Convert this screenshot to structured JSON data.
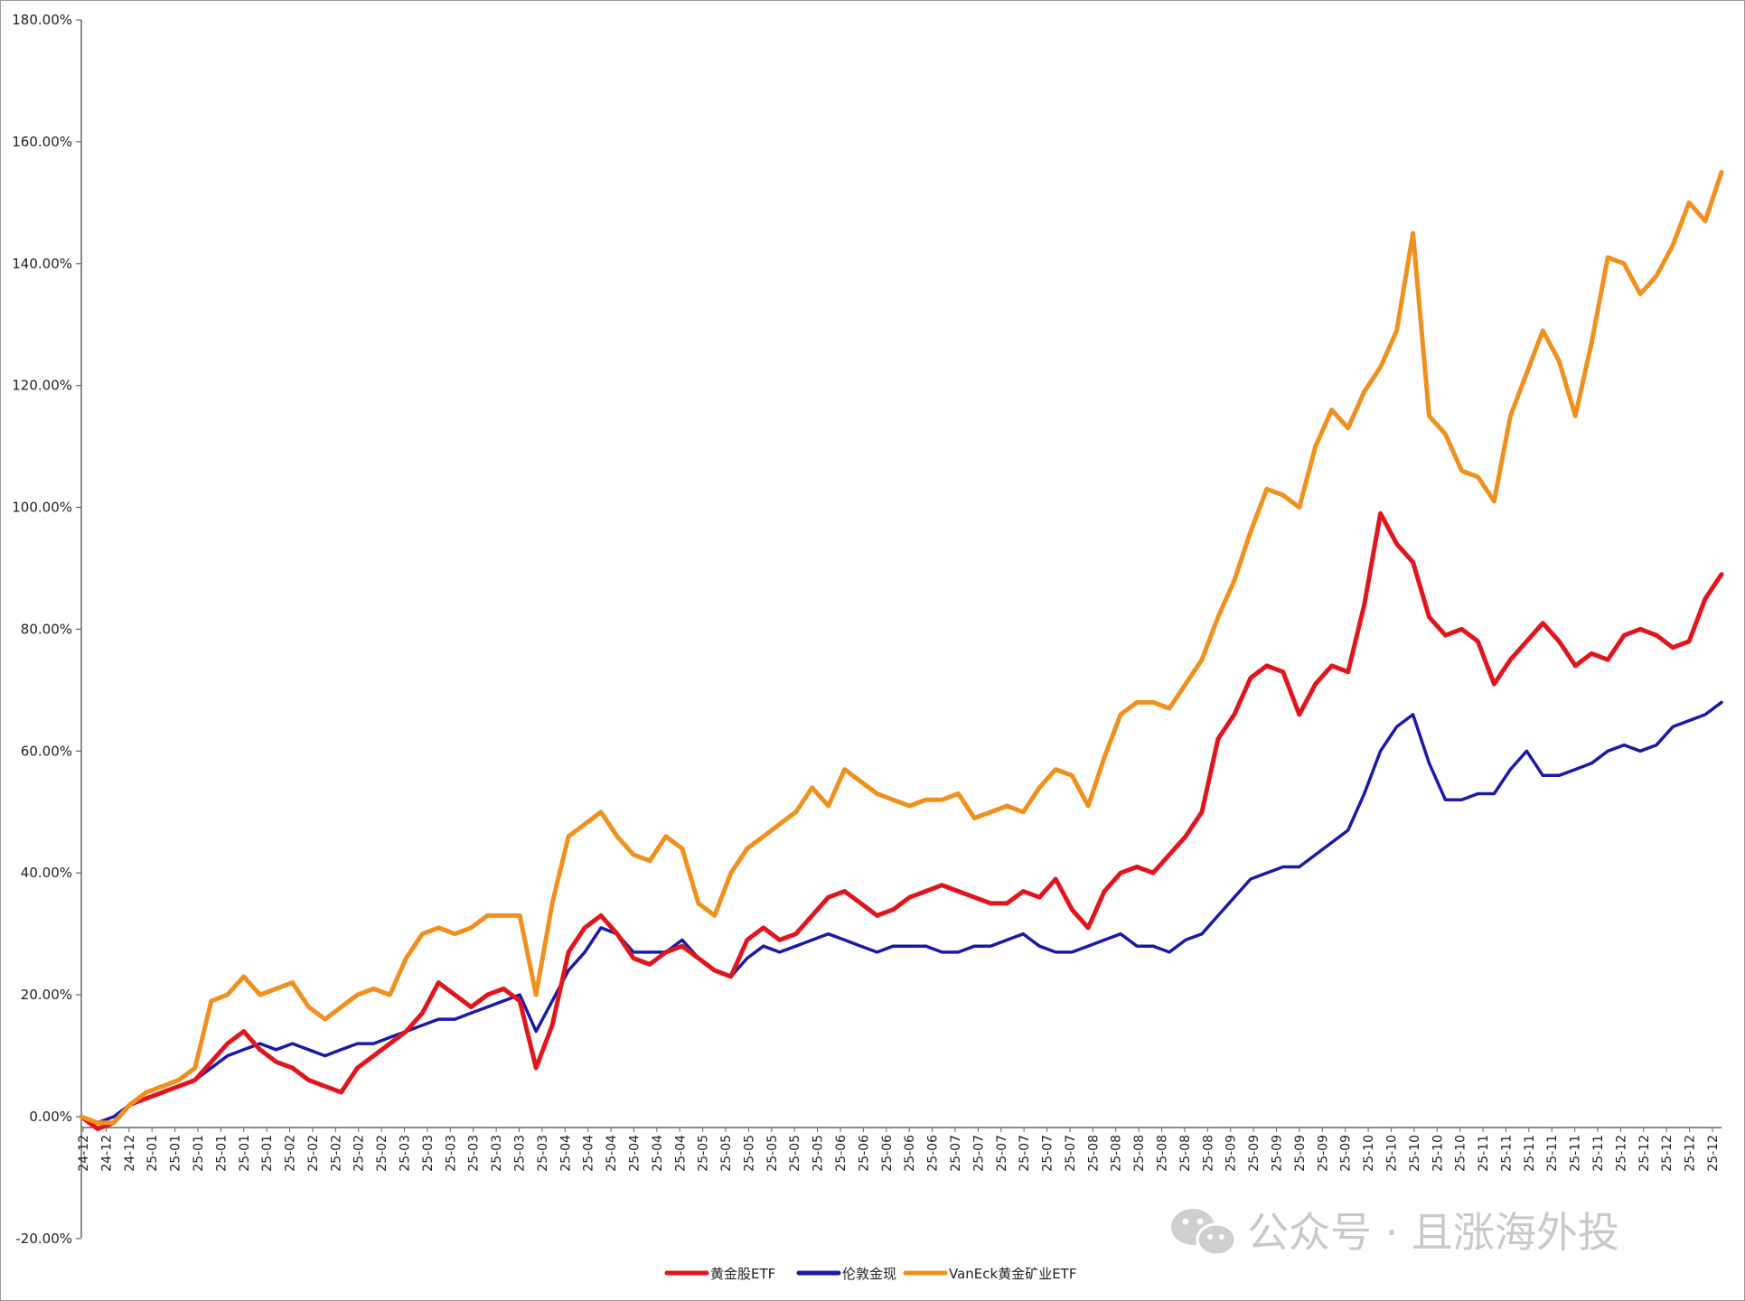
{
  "chart_data": {
    "type": "line",
    "title": "",
    "xlabel": "",
    "ylabel": "",
    "ylim": [
      -0.2,
      1.8
    ],
    "yticks": [
      "-20.00%",
      "0.00%",
      "20.00%",
      "40.00%",
      "60.00%",
      "80.00%",
      "100.00%",
      "120.00%",
      "140.00%",
      "160.00%",
      "180.00%"
    ],
    "xticks": [
      "24-12",
      "24-12",
      "24-12",
      "25-01",
      "25-01",
      "25-01",
      "25-01",
      "25-01",
      "25-01",
      "25-02",
      "25-02",
      "25-02",
      "25-02",
      "25-02",
      "25-03",
      "25-03",
      "25-03",
      "25-03",
      "25-03",
      "25-03",
      "25-03",
      "25-04",
      "25-04",
      "25-04",
      "25-04",
      "25-04",
      "25-04",
      "25-05",
      "25-05",
      "25-05",
      "25-05",
      "25-05",
      "25-05",
      "25-06",
      "25-06",
      "25-06",
      "25-06",
      "25-06",
      "25-07",
      "25-07",
      "25-07",
      "25-07",
      "25-07",
      "25-07",
      "25-08",
      "25-08",
      "25-08",
      "25-08",
      "25-08",
      "25-08",
      "25-09",
      "25-09",
      "25-09",
      "25-09",
      "25-09",
      "25-09",
      "25-10",
      "25-10",
      "25-10",
      "25-10",
      "25-10",
      "25-11",
      "25-11",
      "25-11",
      "25-11",
      "25-11",
      "25-11",
      "25-12",
      "25-12",
      "25-12",
      "25-12",
      "25-12"
    ],
    "legend_position": "bottom-center",
    "grid": false,
    "series": [
      {
        "name": "黄金股ETF",
        "color": "#e0161e",
        "points": [
          [
            0,
            0.0
          ],
          [
            1,
            -0.02
          ],
          [
            2,
            -0.01
          ],
          [
            3,
            0.02
          ],
          [
            4,
            0.03
          ],
          [
            5,
            0.04
          ],
          [
            6,
            0.05
          ],
          [
            7,
            0.06
          ],
          [
            8,
            0.09
          ],
          [
            9,
            0.12
          ],
          [
            10,
            0.14
          ],
          [
            11,
            0.11
          ],
          [
            12,
            0.09
          ],
          [
            13,
            0.08
          ],
          [
            14,
            0.06
          ],
          [
            15,
            0.05
          ],
          [
            16,
            0.04
          ],
          [
            17,
            0.08
          ],
          [
            18,
            0.1
          ],
          [
            19,
            0.12
          ],
          [
            20,
            0.14
          ],
          [
            21,
            0.17
          ],
          [
            22,
            0.22
          ],
          [
            23,
            0.2
          ],
          [
            24,
            0.18
          ],
          [
            25,
            0.2
          ],
          [
            26,
            0.21
          ],
          [
            27,
            0.19
          ],
          [
            28,
            0.08
          ],
          [
            29,
            0.15
          ],
          [
            30,
            0.27
          ],
          [
            31,
            0.31
          ],
          [
            32,
            0.33
          ],
          [
            33,
            0.3
          ],
          [
            34,
            0.26
          ],
          [
            35,
            0.25
          ],
          [
            36,
            0.27
          ],
          [
            37,
            0.28
          ],
          [
            38,
            0.26
          ],
          [
            39,
            0.24
          ],
          [
            40,
            0.23
          ],
          [
            41,
            0.29
          ],
          [
            42,
            0.31
          ],
          [
            43,
            0.29
          ],
          [
            44,
            0.3
          ],
          [
            45,
            0.33
          ],
          [
            46,
            0.36
          ],
          [
            47,
            0.37
          ],
          [
            48,
            0.35
          ],
          [
            49,
            0.33
          ],
          [
            50,
            0.34
          ],
          [
            51,
            0.36
          ],
          [
            52,
            0.37
          ],
          [
            53,
            0.38
          ],
          [
            54,
            0.37
          ],
          [
            55,
            0.36
          ],
          [
            56,
            0.35
          ],
          [
            57,
            0.35
          ],
          [
            58,
            0.37
          ],
          [
            59,
            0.36
          ],
          [
            60,
            0.39
          ],
          [
            61,
            0.34
          ],
          [
            62,
            0.31
          ],
          [
            63,
            0.37
          ],
          [
            64,
            0.4
          ],
          [
            65,
            0.41
          ],
          [
            66,
            0.4
          ],
          [
            67,
            0.43
          ],
          [
            68,
            0.46
          ],
          [
            69,
            0.5
          ],
          [
            70,
            0.62
          ],
          [
            71,
            0.66
          ],
          [
            72,
            0.72
          ],
          [
            73,
            0.74
          ],
          [
            74,
            0.73
          ],
          [
            75,
            0.66
          ],
          [
            76,
            0.71
          ],
          [
            77,
            0.74
          ],
          [
            78,
            0.73
          ],
          [
            79,
            0.84
          ],
          [
            80,
            0.99
          ],
          [
            81,
            0.94
          ],
          [
            82,
            0.91
          ],
          [
            83,
            0.82
          ],
          [
            84,
            0.79
          ],
          [
            85,
            0.8
          ],
          [
            86,
            0.78
          ],
          [
            87,
            0.71
          ],
          [
            88,
            0.75
          ],
          [
            89,
            0.78
          ],
          [
            90,
            0.81
          ],
          [
            91,
            0.78
          ],
          [
            92,
            0.74
          ],
          [
            93,
            0.76
          ],
          [
            94,
            0.75
          ],
          [
            95,
            0.79
          ],
          [
            96,
            0.8
          ],
          [
            97,
            0.79
          ],
          [
            98,
            0.77
          ],
          [
            99,
            0.78
          ],
          [
            100,
            0.85
          ],
          [
            101,
            0.89
          ]
        ]
      },
      {
        "name": "伦敦金现",
        "color": "#1a1aa6",
        "points": [
          [
            0,
            0.0
          ],
          [
            1,
            -0.01
          ],
          [
            2,
            0.0
          ],
          [
            3,
            0.02
          ],
          [
            4,
            0.03
          ],
          [
            5,
            0.04
          ],
          [
            6,
            0.05
          ],
          [
            7,
            0.06
          ],
          [
            8,
            0.08
          ],
          [
            9,
            0.1
          ],
          [
            10,
            0.11
          ],
          [
            11,
            0.12
          ],
          [
            12,
            0.11
          ],
          [
            13,
            0.12
          ],
          [
            14,
            0.11
          ],
          [
            15,
            0.1
          ],
          [
            16,
            0.11
          ],
          [
            17,
            0.12
          ],
          [
            18,
            0.12
          ],
          [
            19,
            0.13
          ],
          [
            20,
            0.14
          ],
          [
            21,
            0.15
          ],
          [
            22,
            0.16
          ],
          [
            23,
            0.16
          ],
          [
            24,
            0.17
          ],
          [
            25,
            0.18
          ],
          [
            26,
            0.19
          ],
          [
            27,
            0.2
          ],
          [
            28,
            0.14
          ],
          [
            29,
            0.19
          ],
          [
            30,
            0.24
          ],
          [
            31,
            0.27
          ],
          [
            32,
            0.31
          ],
          [
            33,
            0.3
          ],
          [
            34,
            0.27
          ],
          [
            35,
            0.27
          ],
          [
            36,
            0.27
          ],
          [
            37,
            0.29
          ],
          [
            38,
            0.26
          ],
          [
            39,
            0.24
          ],
          [
            40,
            0.23
          ],
          [
            41,
            0.26
          ],
          [
            42,
            0.28
          ],
          [
            43,
            0.27
          ],
          [
            44,
            0.28
          ],
          [
            45,
            0.29
          ],
          [
            46,
            0.3
          ],
          [
            47,
            0.29
          ],
          [
            48,
            0.28
          ],
          [
            49,
            0.27
          ],
          [
            50,
            0.28
          ],
          [
            51,
            0.28
          ],
          [
            52,
            0.28
          ],
          [
            53,
            0.27
          ],
          [
            54,
            0.27
          ],
          [
            55,
            0.28
          ],
          [
            56,
            0.28
          ],
          [
            57,
            0.29
          ],
          [
            58,
            0.3
          ],
          [
            59,
            0.28
          ],
          [
            60,
            0.27
          ],
          [
            61,
            0.27
          ],
          [
            62,
            0.28
          ],
          [
            63,
            0.29
          ],
          [
            64,
            0.3
          ],
          [
            65,
            0.28
          ],
          [
            66,
            0.28
          ],
          [
            67,
            0.27
          ],
          [
            68,
            0.29
          ],
          [
            69,
            0.3
          ],
          [
            70,
            0.33
          ],
          [
            71,
            0.36
          ],
          [
            72,
            0.39
          ],
          [
            73,
            0.4
          ],
          [
            74,
            0.41
          ],
          [
            75,
            0.41
          ],
          [
            76,
            0.43
          ],
          [
            77,
            0.45
          ],
          [
            78,
            0.47
          ],
          [
            79,
            0.53
          ],
          [
            80,
            0.6
          ],
          [
            81,
            0.64
          ],
          [
            82,
            0.66
          ],
          [
            83,
            0.58
          ],
          [
            84,
            0.52
          ],
          [
            85,
            0.52
          ],
          [
            86,
            0.53
          ],
          [
            87,
            0.53
          ],
          [
            88,
            0.57
          ],
          [
            89,
            0.6
          ],
          [
            90,
            0.56
          ],
          [
            91,
            0.56
          ],
          [
            92,
            0.57
          ],
          [
            93,
            0.58
          ],
          [
            94,
            0.6
          ],
          [
            95,
            0.61
          ],
          [
            96,
            0.6
          ],
          [
            97,
            0.61
          ],
          [
            98,
            0.64
          ],
          [
            99,
            0.65
          ],
          [
            100,
            0.66
          ],
          [
            101,
            0.68
          ]
        ]
      },
      {
        "name": "VanEck黄金矿业ETF",
        "color": "#f0901e",
        "points": [
          [
            0,
            0.0
          ],
          [
            1,
            -0.01
          ],
          [
            2,
            -0.01
          ],
          [
            3,
            0.02
          ],
          [
            4,
            0.04
          ],
          [
            5,
            0.05
          ],
          [
            6,
            0.06
          ],
          [
            7,
            0.08
          ],
          [
            8,
            0.19
          ],
          [
            9,
            0.2
          ],
          [
            10,
            0.23
          ],
          [
            11,
            0.2
          ],
          [
            12,
            0.21
          ],
          [
            13,
            0.22
          ],
          [
            14,
            0.18
          ],
          [
            15,
            0.16
          ],
          [
            16,
            0.18
          ],
          [
            17,
            0.2
          ],
          [
            18,
            0.21
          ],
          [
            19,
            0.2
          ],
          [
            20,
            0.26
          ],
          [
            21,
            0.3
          ],
          [
            22,
            0.31
          ],
          [
            23,
            0.3
          ],
          [
            24,
            0.31
          ],
          [
            25,
            0.33
          ],
          [
            26,
            0.33
          ],
          [
            27,
            0.33
          ],
          [
            28,
            0.2
          ],
          [
            29,
            0.35
          ],
          [
            30,
            0.46
          ],
          [
            31,
            0.48
          ],
          [
            32,
            0.5
          ],
          [
            33,
            0.46
          ],
          [
            34,
            0.43
          ],
          [
            35,
            0.42
          ],
          [
            36,
            0.46
          ],
          [
            37,
            0.44
          ],
          [
            38,
            0.35
          ],
          [
            39,
            0.33
          ],
          [
            40,
            0.4
          ],
          [
            41,
            0.44
          ],
          [
            42,
            0.46
          ],
          [
            43,
            0.48
          ],
          [
            44,
            0.5
          ],
          [
            45,
            0.54
          ],
          [
            46,
            0.51
          ],
          [
            47,
            0.57
          ],
          [
            48,
            0.55
          ],
          [
            49,
            0.53
          ],
          [
            50,
            0.52
          ],
          [
            51,
            0.51
          ],
          [
            52,
            0.52
          ],
          [
            53,
            0.52
          ],
          [
            54,
            0.53
          ],
          [
            55,
            0.49
          ],
          [
            56,
            0.5
          ],
          [
            57,
            0.51
          ],
          [
            58,
            0.5
          ],
          [
            59,
            0.54
          ],
          [
            60,
            0.57
          ],
          [
            61,
            0.56
          ],
          [
            62,
            0.51
          ],
          [
            63,
            0.59
          ],
          [
            64,
            0.66
          ],
          [
            65,
            0.68
          ],
          [
            66,
            0.68
          ],
          [
            67,
            0.67
          ],
          [
            68,
            0.71
          ],
          [
            69,
            0.75
          ],
          [
            70,
            0.82
          ],
          [
            71,
            0.88
          ],
          [
            72,
            0.96
          ],
          [
            73,
            1.03
          ],
          [
            74,
            1.02
          ],
          [
            75,
            1.0
          ],
          [
            76,
            1.1
          ],
          [
            77,
            1.16
          ],
          [
            78,
            1.13
          ],
          [
            79,
            1.19
          ],
          [
            80,
            1.23
          ],
          [
            81,
            1.29
          ],
          [
            82,
            1.45
          ],
          [
            83,
            1.15
          ],
          [
            84,
            1.12
          ],
          [
            85,
            1.06
          ],
          [
            86,
            1.05
          ],
          [
            87,
            1.01
          ],
          [
            88,
            1.15
          ],
          [
            89,
            1.22
          ],
          [
            90,
            1.29
          ],
          [
            91,
            1.24
          ],
          [
            92,
            1.15
          ],
          [
            93,
            1.27
          ],
          [
            94,
            1.41
          ],
          [
            95,
            1.4
          ],
          [
            96,
            1.35
          ],
          [
            97,
            1.38
          ],
          [
            98,
            1.43
          ],
          [
            99,
            1.5
          ],
          [
            100,
            1.47
          ],
          [
            101,
            1.55
          ]
        ]
      }
    ]
  },
  "watermark": {
    "text": "公众号 · 且涨海外投",
    "icon": "wechat-icon"
  }
}
